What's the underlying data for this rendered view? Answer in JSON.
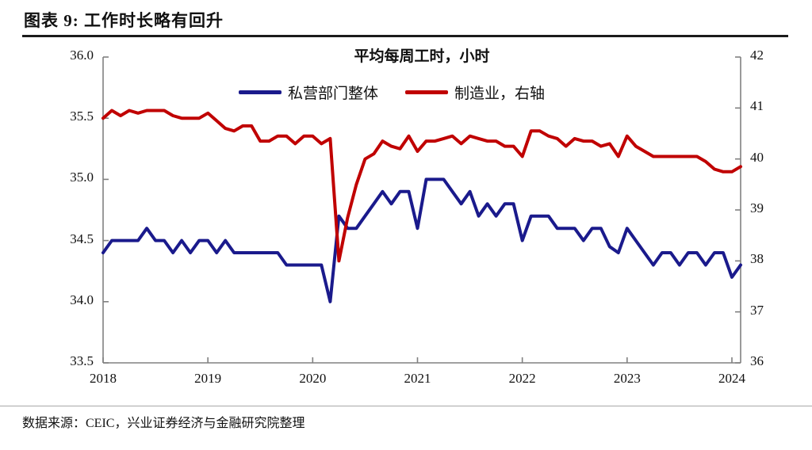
{
  "header": {
    "title": "图表 9: 工作时长略有回升"
  },
  "chart_data": {
    "type": "line",
    "title": "平均每周工时，小时",
    "x_range": [
      "2018-01",
      "2024-02"
    ],
    "x_frequency": "monthly",
    "x_tick_labels": [
      "2018",
      "2019",
      "2020",
      "2021",
      "2022",
      "2023",
      "2024"
    ],
    "left_axis": {
      "min": 33.5,
      "max": 36.0,
      "step": 0.5,
      "ticks": [
        "36.0",
        "35.5",
        "35.0",
        "34.5",
        "34.0",
        "33.5"
      ]
    },
    "right_axis": {
      "min": 36,
      "max": 42,
      "step": 1,
      "ticks": [
        "42",
        "41",
        "40",
        "39",
        "38",
        "37",
        "36"
      ]
    },
    "legend_position": "top-center",
    "grid": false,
    "series": [
      {
        "name": "私营部门整体",
        "axis": "left",
        "color": "#1a1a8c",
        "values": [
          34.4,
          34.5,
          34.5,
          34.5,
          34.5,
          34.6,
          34.5,
          34.5,
          34.4,
          34.5,
          34.4,
          34.5,
          34.5,
          34.4,
          34.5,
          34.4,
          34.4,
          34.4,
          34.4,
          34.4,
          34.4,
          34.3,
          34.3,
          34.3,
          34.3,
          34.3,
          34.0,
          34.7,
          34.6,
          34.6,
          34.7,
          34.8,
          34.9,
          34.8,
          34.9,
          34.9,
          34.6,
          35.0,
          35.0,
          35.0,
          34.9,
          34.8,
          34.9,
          34.7,
          34.8,
          34.7,
          34.8,
          34.8,
          34.5,
          34.7,
          34.7,
          34.7,
          34.6,
          34.6,
          34.6,
          34.5,
          34.6,
          34.6,
          34.45,
          34.4,
          34.6,
          34.5,
          34.4,
          34.3,
          34.4,
          34.4,
          34.3,
          34.4,
          34.4,
          34.3,
          34.4,
          34.4,
          34.2,
          34.3
        ]
      },
      {
        "name": "制造业，右轴",
        "axis": "right",
        "color": "#c00000",
        "values": [
          40.8,
          40.95,
          40.85,
          40.95,
          40.9,
          40.95,
          40.95,
          40.95,
          40.85,
          40.8,
          40.8,
          40.8,
          40.9,
          40.75,
          40.6,
          40.55,
          40.65,
          40.65,
          40.35,
          40.35,
          40.45,
          40.45,
          40.3,
          40.45,
          40.45,
          40.3,
          40.4,
          38.0,
          38.85,
          39.5,
          40.0,
          40.1,
          40.35,
          40.25,
          40.2,
          40.45,
          40.15,
          40.35,
          40.35,
          40.4,
          40.45,
          40.3,
          40.45,
          40.4,
          40.35,
          40.35,
          40.25,
          40.25,
          40.05,
          40.55,
          40.55,
          40.45,
          40.4,
          40.25,
          40.4,
          40.35,
          40.35,
          40.25,
          40.3,
          40.05,
          40.45,
          40.25,
          40.15,
          40.05,
          40.05,
          40.05,
          40.05,
          40.05,
          40.05,
          39.95,
          39.8,
          39.75,
          39.75,
          39.85
        ]
      }
    ]
  },
  "footer": {
    "source": "数据来源：CEIC，兴业证券经济与金融研究院整理"
  },
  "colors": {
    "series_private": "#1a1a8c",
    "series_manufacturing": "#c00000",
    "axis_line": "#808080",
    "header_rule": "#1a1a1a",
    "text": "#111111"
  }
}
